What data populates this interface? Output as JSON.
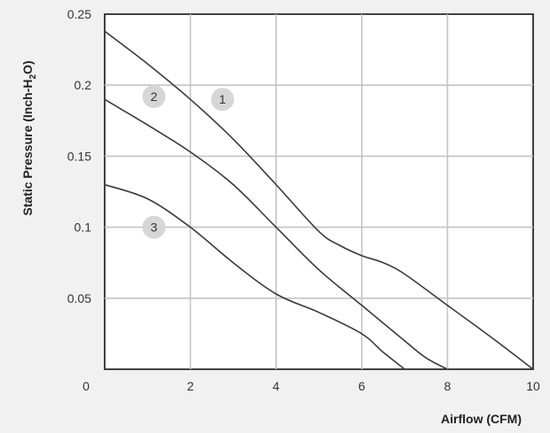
{
  "chart_data": {
    "type": "line",
    "xlabel": "Airflow (CFM)",
    "ylabel": "Static Pressure (Inch-H",
    "ylabel_sub": "2",
    "ylabel_end": "O)",
    "xlim": [
      0,
      10
    ],
    "ylim": [
      0,
      0.25
    ],
    "x_ticks": [
      "0",
      "2",
      "4",
      "6",
      "8",
      "10"
    ],
    "y_ticks": [
      "0.05",
      "0.1",
      "0.15",
      "0.2",
      "0.25"
    ],
    "grid": true,
    "series": [
      {
        "name": "1",
        "x": [
          0,
          1,
          2,
          3,
          4,
          5,
          5.5,
          6,
          6.5,
          7,
          8,
          9,
          10
        ],
        "y": [
          0.238,
          0.215,
          0.19,
          0.162,
          0.13,
          0.097,
          0.087,
          0.08,
          0.075,
          0.067,
          0.045,
          0.023,
          0
        ]
      },
      {
        "name": "2",
        "x": [
          0,
          1,
          2,
          3,
          4,
          5,
          6,
          7,
          7.5,
          8
        ],
        "y": [
          0.19,
          0.172,
          0.153,
          0.13,
          0.1,
          0.07,
          0.045,
          0.02,
          0.008,
          0
        ]
      },
      {
        "name": "3",
        "x": [
          0,
          1,
          2,
          3,
          4,
          5,
          6,
          6.5,
          7
        ],
        "y": [
          0.13,
          0.12,
          0.1,
          0.075,
          0.053,
          0.04,
          0.025,
          0.012,
          0
        ]
      }
    ],
    "labels": [
      {
        "text": "1",
        "x": 2.75,
        "y": 0.19
      },
      {
        "text": "2",
        "x": 1.15,
        "y": 0.192
      },
      {
        "text": "3",
        "x": 1.15,
        "y": 0.1
      }
    ]
  }
}
